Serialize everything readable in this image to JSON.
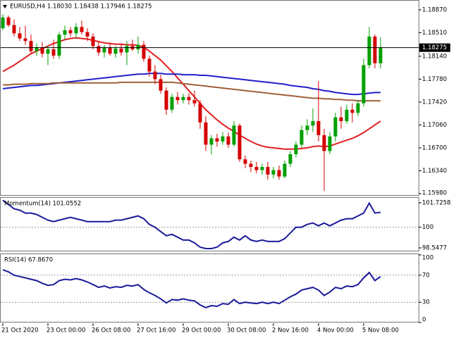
{
  "chart_data": [
    {
      "type": "candlestick",
      "title": "EURUSD,H4  1.18030 1.18438 1.17946 1.18275",
      "categories": [
        "21 Oct 2020",
        null,
        null,
        null,
        null,
        null,
        null,
        null,
        "23 Oct 00:00",
        null,
        null,
        null,
        null,
        null,
        null,
        null,
        "26 Oct 08:00",
        null,
        null,
        null,
        null,
        null,
        null,
        null,
        "27 Oct 16:00",
        null,
        null,
        null,
        null,
        null,
        null,
        null,
        "29 Oct 00:00",
        null,
        null,
        null,
        null,
        null,
        null,
        null,
        "30 Oct 08:00",
        null,
        null,
        null,
        null,
        null,
        null,
        null,
        "2 Nov 16:00",
        null,
        null,
        null,
        null,
        null,
        null,
        null,
        "4 Nov 00:00",
        null,
        null,
        null,
        null,
        null,
        null,
        null,
        "5 Nov 08:00",
        null,
        null,
        null
      ],
      "open": [
        1.1858,
        1.1875,
        1.1863,
        1.185,
        1.1842,
        1.1838,
        1.1822,
        1.1828,
        1.1818,
        1.1825,
        1.1815,
        1.1848,
        1.1855,
        1.185,
        1.186,
        1.1852,
        1.1845,
        1.183,
        1.182,
        1.1828,
        1.1818,
        1.1826,
        1.182,
        1.183,
        1.1825,
        1.1832,
        1.181,
        1.179,
        1.1778,
        1.176,
        1.173,
        1.175,
        1.1745,
        1.175,
        1.1745,
        1.174,
        1.171,
        1.1675,
        1.1685,
        1.168,
        1.1688,
        1.1675,
        1.1705,
        1.1652,
        1.1645,
        1.164,
        1.1635,
        1.164,
        1.1628,
        1.1635,
        1.1625,
        1.1645,
        1.166,
        1.1675,
        1.1698,
        1.1705,
        1.1712,
        1.169,
        1.1665,
        1.1688,
        1.1718,
        1.1712,
        1.173,
        1.1725,
        1.174,
        1.18,
        1.1845,
        1.1803
      ],
      "high": [
        1.188,
        1.1878,
        1.1872,
        1.186,
        1.1862,
        1.1848,
        1.1834,
        1.1836,
        1.183,
        1.184,
        1.1852,
        1.1862,
        1.186,
        1.1866,
        1.187,
        1.1858,
        1.185,
        1.1838,
        1.1832,
        1.1835,
        1.183,
        1.1834,
        1.1838,
        1.184,
        1.1845,
        1.1838,
        1.1815,
        1.18,
        1.1785,
        1.1765,
        1.1755,
        1.1758,
        1.1755,
        1.1756,
        1.176,
        1.1745,
        1.172,
        1.169,
        1.1692,
        1.1695,
        1.1694,
        1.1712,
        1.1708,
        1.1658,
        1.165,
        1.1648,
        1.1645,
        1.1648,
        1.164,
        1.1642,
        1.165,
        1.1665,
        1.168,
        1.1705,
        1.1715,
        1.1732,
        1.1775,
        1.17,
        1.1695,
        1.1725,
        1.1735,
        1.1738,
        1.174,
        1.1745,
        1.181,
        1.186,
        1.1848,
        1.18438
      ],
      "low": [
        1.1855,
        1.186,
        1.1845,
        1.1838,
        1.1832,
        1.1818,
        1.1815,
        1.1812,
        1.18,
        1.181,
        1.181,
        1.184,
        1.1845,
        1.1842,
        1.1848,
        1.1838,
        1.1825,
        1.1815,
        1.1812,
        1.1815,
        1.1812,
        1.1815,
        1.18,
        1.1822,
        1.1818,
        1.1805,
        1.1782,
        1.177,
        1.1755,
        1.1722,
        1.1725,
        1.1738,
        1.174,
        1.1738,
        1.1735,
        1.17,
        1.1665,
        1.166,
        1.1672,
        1.1675,
        1.167,
        1.1672,
        1.1648,
        1.1638,
        1.1632,
        1.163,
        1.1628,
        1.162,
        1.1622,
        1.162,
        1.1622,
        1.164,
        1.1655,
        1.167,
        1.169,
        1.1695,
        1.168,
        1.1602,
        1.166,
        1.168,
        1.17,
        1.1708,
        1.171,
        1.172,
        1.1735,
        1.1795,
        1.1795,
        1.17946
      ],
      "close": [
        1.1875,
        1.1863,
        1.185,
        1.1842,
        1.1838,
        1.1822,
        1.1828,
        1.1818,
        1.1825,
        1.1815,
        1.1848,
        1.1855,
        1.185,
        1.186,
        1.1852,
        1.1845,
        1.183,
        1.182,
        1.1828,
        1.1818,
        1.1826,
        1.182,
        1.183,
        1.1825,
        1.1832,
        1.181,
        1.179,
        1.1778,
        1.176,
        1.173,
        1.175,
        1.1745,
        1.175,
        1.1745,
        1.174,
        1.171,
        1.1675,
        1.1685,
        1.168,
        1.1688,
        1.1675,
        1.1705,
        1.1652,
        1.1645,
        1.164,
        1.1635,
        1.164,
        1.1628,
        1.1635,
        1.1625,
        1.1645,
        1.166,
        1.1675,
        1.1698,
        1.1705,
        1.1712,
        1.169,
        1.1665,
        1.1688,
        1.1718,
        1.1712,
        1.173,
        1.1725,
        1.174,
        1.18,
        1.1845,
        1.1803,
        1.18275
      ],
      "up_color": "#00a000",
      "down_color": "#d40000",
      "overlays": [
        {
          "color": "#e02020",
          "values": [
            1.179,
            1.1795,
            1.18,
            1.1806,
            1.1812,
            1.1818,
            1.1822,
            1.1826,
            1.183,
            1.1834,
            1.1837,
            1.184,
            1.1842,
            1.1843,
            1.1842,
            1.1841,
            1.1839,
            1.1837,
            1.1835,
            1.1834,
            1.1833,
            1.1833,
            1.1832,
            1.1832,
            1.1831,
            1.1828,
            1.1822,
            1.1815,
            1.1808,
            1.1799,
            1.179,
            1.178,
            1.177,
            1.176,
            1.175,
            1.174,
            1.173,
            1.1722,
            1.1714,
            1.1707,
            1.1701,
            1.1696,
            1.169,
            1.1685,
            1.168,
            1.1676,
            1.1673,
            1.1671,
            1.167,
            1.1669,
            1.1668,
            1.1668,
            1.1668,
            1.1669,
            1.167,
            1.1672,
            1.1673,
            1.1672,
            1.1673,
            1.1676,
            1.1679,
            1.1682,
            1.1685,
            1.1689,
            1.1694,
            1.17,
            1.1706,
            1.1712
          ]
        },
        {
          "color": "#2020c8",
          "values": [
            1.1763,
            1.1764,
            1.1765,
            1.1766,
            1.1767,
            1.1768,
            1.1768,
            1.1769,
            1.177,
            1.1771,
            1.1772,
            1.1773,
            1.1774,
            1.1775,
            1.1776,
            1.1777,
            1.1778,
            1.1779,
            1.178,
            1.1781,
            1.1782,
            1.1783,
            1.1784,
            1.1785,
            1.1786,
            1.1786,
            1.1787,
            1.1787,
            1.1787,
            1.1786,
            1.1786,
            1.1786,
            1.1785,
            1.1785,
            1.1785,
            1.1784,
            1.1784,
            1.1783,
            1.1782,
            1.1781,
            1.178,
            1.1779,
            1.1778,
            1.1777,
            1.1776,
            1.1775,
            1.1774,
            1.1773,
            1.1772,
            1.1771,
            1.177,
            1.1768,
            1.1767,
            1.1766,
            1.1765,
            1.1763,
            1.1762,
            1.176,
            1.1759,
            1.1757,
            1.1756,
            1.1755,
            1.1754,
            1.1754,
            1.1755,
            1.1756,
            1.1757,
            1.1757
          ]
        },
        {
          "color": "#a0603a",
          "values": [
            1.1769,
            1.1769,
            1.177,
            1.177,
            1.177,
            1.1771,
            1.1771,
            1.1771,
            1.1771,
            1.1772,
            1.1772,
            1.1772,
            1.1772,
            1.1772,
            1.1772,
            1.1772,
            1.1772,
            1.1772,
            1.1772,
            1.1772,
            1.1772,
            1.1773,
            1.1773,
            1.1773,
            1.1773,
            1.1773,
            1.1773,
            1.1773,
            1.1773,
            1.1773,
            1.1773,
            1.1772,
            1.1771,
            1.177,
            1.1769,
            1.1768,
            1.1767,
            1.1766,
            1.1765,
            1.1764,
            1.1763,
            1.1762,
            1.1761,
            1.176,
            1.1759,
            1.1758,
            1.1757,
            1.1756,
            1.1755,
            1.1754,
            1.1753,
            1.1752,
            1.1751,
            1.175,
            1.1749,
            1.1748,
            1.1748,
            1.1747,
            1.1747,
            1.1746,
            1.1746,
            1.1745,
            1.1745,
            1.1744,
            1.1744,
            1.1744,
            1.1744,
            1.1744
          ]
        }
      ],
      "last_price": 1.18275,
      "ylim": [
        1.15947,
        1.19002
      ],
      "yticks": [
        {
          "value": 1.1887,
          "label": "1.18870"
        },
        {
          "value": 1.1851,
          "label": "1.18510"
        },
        {
          "value": 1.1814,
          "label": "1.18140"
        },
        {
          "value": 1.1778,
          "label": "1.17780"
        },
        {
          "value": 1.1742,
          "label": "1.17420"
        },
        {
          "value": 1.1706,
          "label": "1.17060"
        },
        {
          "value": 1.167,
          "label": "1.16700"
        },
        {
          "value": 1.1634,
          "label": "1.16340"
        },
        {
          "value": 1.1598,
          "label": "1.15980"
        }
      ]
    },
    {
      "type": "line",
      "title": "Momentum(14) 101.0552",
      "color": "#1a1a9a",
      "values": [
        101.9,
        101.6,
        101.3,
        101.2,
        101.0,
        101.0,
        100.9,
        100.7,
        100.5,
        100.4,
        100.5,
        100.6,
        100.7,
        100.6,
        100.5,
        100.4,
        100.4,
        100.4,
        100.4,
        100.4,
        100.5,
        100.5,
        100.6,
        100.7,
        100.8,
        100.6,
        100.2,
        100.0,
        99.7,
        99.4,
        99.5,
        99.3,
        99.1,
        99.1,
        98.9,
        98.6,
        98.5,
        98.5,
        98.6,
        98.9,
        99.0,
        99.3,
        99.1,
        99.4,
        99.1,
        99.0,
        99.1,
        99.0,
        99.0,
        99.0,
        99.2,
        99.6,
        100.0,
        100.0,
        100.2,
        100.3,
        100.1,
        100.3,
        100.1,
        100.3,
        100.5,
        100.6,
        100.6,
        100.8,
        101.0,
        101.7,
        101.0,
        101.0552
      ],
      "ylim": [
        98.3,
        102.02
      ],
      "yticks": [
        98.5477,
        100,
        101.7258
      ],
      "levels": [
        100
      ]
    },
    {
      "type": "line",
      "title": "RSI(14) 67.8670",
      "color": "#1a1a9a",
      "values": [
        78,
        75,
        70,
        68,
        66,
        64,
        62,
        58,
        55,
        56,
        62,
        64,
        63,
        65,
        63,
        60,
        56,
        52,
        54,
        51,
        53,
        52,
        55,
        54,
        56,
        49,
        44,
        40,
        35,
        29,
        34,
        33,
        35,
        33,
        32,
        26,
        22,
        25,
        24,
        28,
        27,
        34,
        28,
        30,
        29,
        28,
        30,
        28,
        30,
        28,
        33,
        38,
        42,
        48,
        50,
        52,
        48,
        40,
        45,
        52,
        50,
        54,
        53,
        56,
        66,
        74,
        62,
        67.867
      ],
      "ylim": [
        0,
        100
      ],
      "yticks": [
        0,
        30,
        70,
        100
      ],
      "levels": [
        70,
        30
      ]
    }
  ]
}
